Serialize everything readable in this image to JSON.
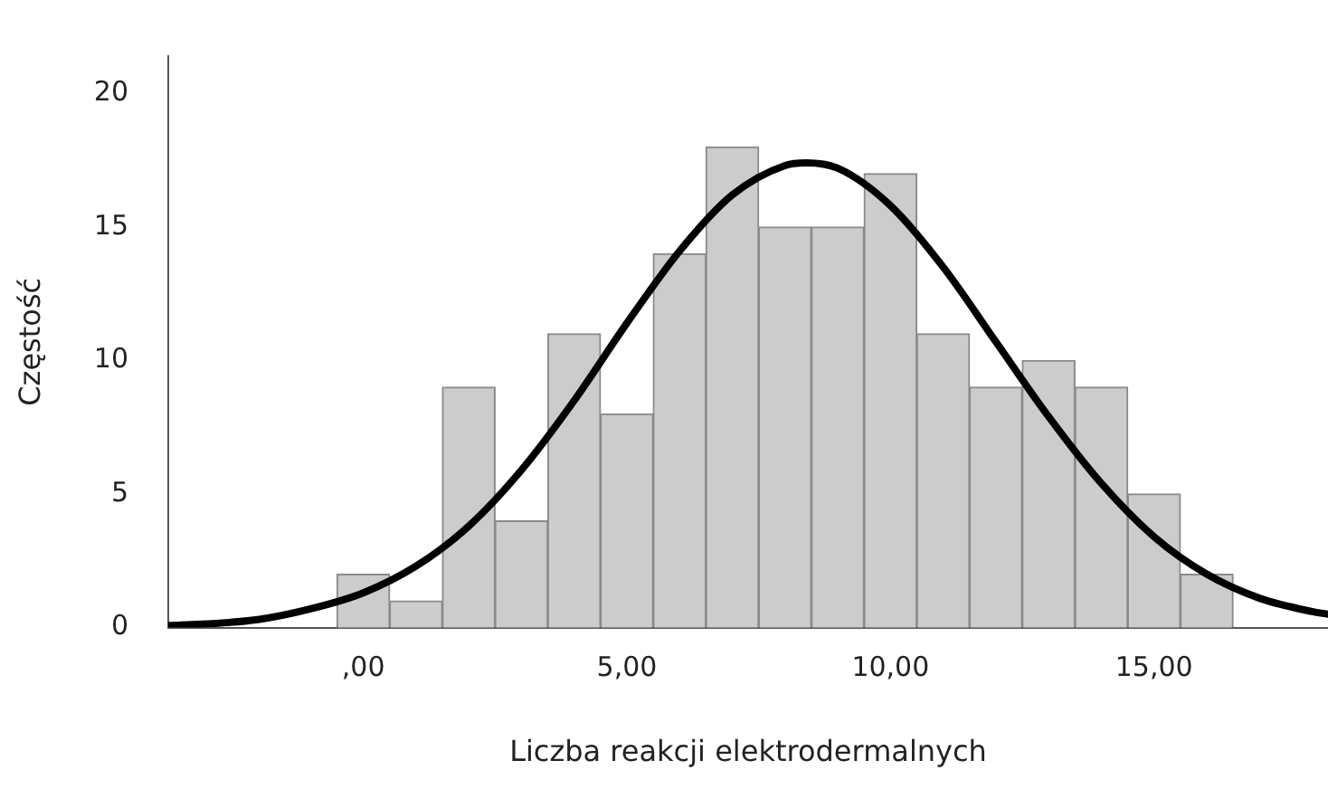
{
  "chart_data": {
    "type": "histogram",
    "xlabel": "Liczba reakcji elektrodermalnych",
    "ylabel": "Częstość",
    "bins": [
      -0.5,
      0.5,
      1.5,
      2.5,
      3.5,
      4.5,
      5.5,
      6.5,
      7.5,
      8.5,
      9.5,
      10.5,
      11.5,
      12.5,
      13.5,
      14.5,
      15.5,
      16.5
    ],
    "values": [
      2,
      1,
      9,
      4,
      11,
      8,
      14,
      18,
      15,
      15,
      17,
      11,
      9,
      10,
      9,
      5,
      2
    ],
    "color": "#cccccc",
    "series": [
      {
        "type": "line",
        "color": "#000000",
        "x": [
          -3.7,
          -3.5,
          -2,
          -1,
          0,
          1,
          2,
          3,
          4,
          5,
          6,
          7,
          8,
          8.4,
          9,
          10,
          11,
          12,
          13,
          14,
          15,
          16,
          17,
          18,
          18.3
        ],
        "values": [
          0.08,
          0.09,
          0.3,
          0.7,
          1.3,
          2.3,
          3.8,
          5.9,
          8.5,
          11.4,
          14.1,
          16.2,
          17.3,
          17.4,
          17.2,
          15.8,
          13.5,
          10.7,
          7.9,
          5.4,
          3.4,
          2.0,
          1.1,
          0.6,
          0.5
        ]
      }
    ],
    "xlim": [
      -3.7,
      18.3
    ],
    "xticks": [
      {
        "value": 0,
        "label": ",00"
      },
      {
        "value": 5,
        "label": "5,00"
      },
      {
        "value": 10,
        "label": "10,00"
      },
      {
        "value": 15,
        "label": "15,00"
      }
    ],
    "ylim": [
      0,
      21.4
    ],
    "yticks": [
      0,
      5,
      10,
      15,
      20
    ],
    "grid": false,
    "legend": false,
    "marker": "none",
    "line_style": "solid"
  }
}
